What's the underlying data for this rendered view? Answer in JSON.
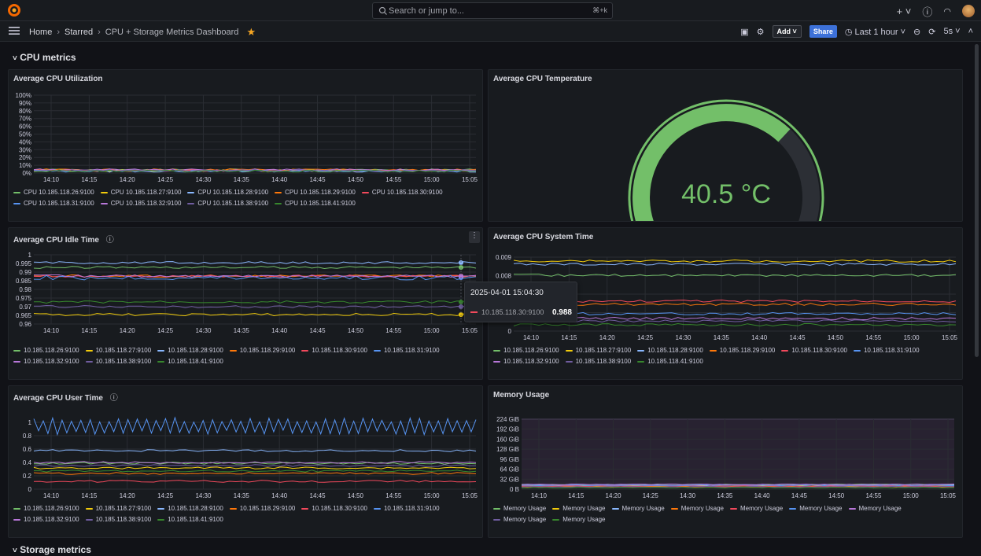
{
  "search": {
    "placeholder": "Search or jump to...",
    "shortcut": "⌘+k"
  },
  "breadcrumbs": [
    "Home",
    "Starred",
    "CPU + Storage Metrics Dashboard"
  ],
  "toolbar": {
    "add": "Add",
    "share": "Share",
    "time_range": "Last 1 hour",
    "refresh": "5s"
  },
  "rows": {
    "cpu": "CPU metrics",
    "storage": "Storage metrics"
  },
  "x_ticks": [
    "14:10",
    "14:15",
    "14:20",
    "14:25",
    "14:30",
    "14:35",
    "14:40",
    "14:45",
    "14:50",
    "14:55",
    "15:00",
    "15:05"
  ],
  "panels": {
    "cpu_util": {
      "title": "Average CPU Utilization",
      "y_ticks": [
        "100%",
        "90%",
        "80%",
        "70%",
        "60%",
        "50%",
        "40%",
        "30%",
        "20%",
        "10%",
        "0%"
      ],
      "legend": [
        "CPU 10.185.118.26:9100",
        "CPU 10.185.118.27:9100",
        "CPU 10.185.118.28:9100",
        "CPU 10.185.118.29:9100",
        "CPU 10.185.118.30:9100",
        "CPU 10.185.118.31:9100",
        "CPU 10.185.118.32:9100",
        "CPU 10.185.118.38:9100",
        "CPU 10.185.118.41:9100"
      ]
    },
    "cpu_temp": {
      "title": "Average CPU Temperature",
      "value": "40.5 °C",
      "fraction": 0.7
    },
    "cpu_idle": {
      "title": "Average CPU Idle Time",
      "y_ticks": [
        "1",
        "0.995",
        "0.99",
        "0.985",
        "0.98",
        "0.975",
        "0.97",
        "0.965",
        "0.96"
      ],
      "legend": [
        "10.185.118.26:9100",
        "10.185.118.27:9100",
        "10.185.118.28:9100",
        "10.185.118.29:9100",
        "10.185.118.30:9100",
        "10.185.118.31:9100",
        "10.185.118.32:9100",
        "10.185.118.38:9100",
        "10.185.118.41:9100"
      ]
    },
    "cpu_system": {
      "title": "Average CPU System Time",
      "y_ticks": [
        "0.009",
        "0.008",
        "0.007",
        "0.006",
        "0"
      ],
      "legend": [
        "10.185.118.26:9100",
        "10.185.118.27:9100",
        "10.185.118.28:9100",
        "10.185.118.29:9100",
        "10.185.118.30:9100",
        "10.185.118.31:9100",
        "10.185.118.32:9100",
        "10.185.118.38:9100",
        "10.185.118.41:9100"
      ]
    },
    "cpu_user": {
      "title": "Average CPU User Time",
      "y_ticks": [
        "1",
        "0.8",
        "0.6",
        "0.4",
        "0.2",
        "0"
      ],
      "legend": [
        "10.185.118.26:9100",
        "10.185.118.27:9100",
        "10.185.118.28:9100",
        "10.185.118.29:9100",
        "10.185.118.30:9100",
        "10.185.118.31:9100",
        "10.185.118.32:9100",
        "10.185.118.38:9100",
        "10.185.118.41:9100"
      ]
    },
    "memory": {
      "title": "Memory Usage",
      "y_ticks": [
        "224 GiB",
        "192 GiB",
        "160 GiB",
        "128 GiB",
        "96 GiB",
        "64 GiB",
        "32 GiB",
        "0 B"
      ],
      "legend": [
        "Memory Usage",
        "Memory Usage",
        "Memory Usage",
        "Memory Usage",
        "Memory Usage",
        "Memory Usage",
        "Memory Usage",
        "Memory Usage",
        "Memory Usage"
      ]
    }
  },
  "series_colors": [
    "#73bf69",
    "#f2cc0c",
    "#8ab8ff",
    "#ff780a",
    "#f2495c",
    "#5794f2",
    "#b877d9",
    "#705da0",
    "#37872d"
  ],
  "tooltip": {
    "time": "2025-04-01 15:04:30",
    "series": "10.185.118.30:9100",
    "value": "0.988",
    "color": "#f2495c"
  }
}
